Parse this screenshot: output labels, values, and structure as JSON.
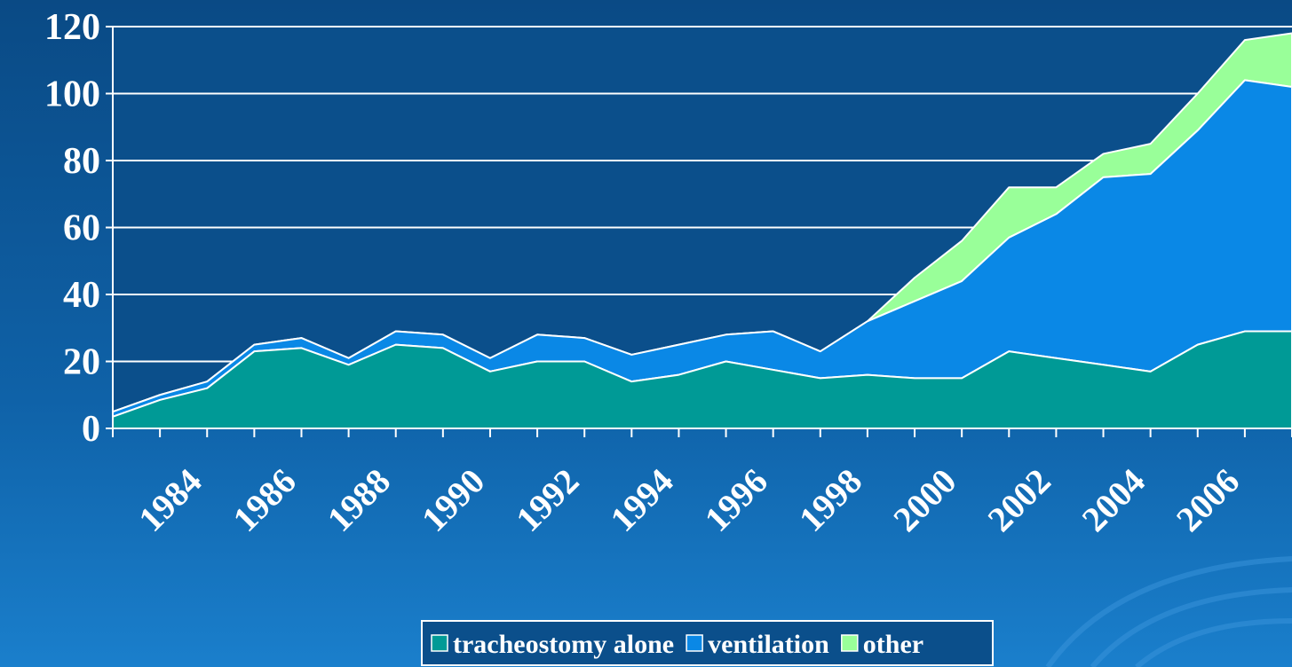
{
  "chart_data": {
    "type": "stacked_area",
    "categories": [
      null,
      null,
      "1984",
      null,
      "1986",
      null,
      "1988",
      null,
      "1990",
      null,
      "1992",
      null,
      "1994",
      null,
      "1996",
      null,
      "1998",
      null,
      "2000",
      null,
      "2002",
      null,
      "2004",
      null,
      "2006",
      null
    ],
    "series": [
      {
        "name": "tracheostomy alone",
        "color": "#009a96",
        "values": [
          3.5,
          8.5,
          12,
          23,
          24,
          19,
          25,
          24,
          17,
          20,
          20,
          14,
          16,
          20,
          17.5,
          15,
          16,
          15,
          15,
          23,
          21,
          19,
          17,
          25,
          29,
          29
        ]
      },
      {
        "name": "ventilation",
        "color": "#0a88e6",
        "values": [
          1.5,
          1.5,
          2,
          2,
          3,
          2,
          4,
          4,
          4,
          8,
          7,
          8,
          9,
          8,
          11.5,
          8,
          16,
          23,
          29,
          34,
          43,
          56,
          59,
          64,
          75,
          73
        ]
      },
      {
        "name": "other",
        "color": "#99ff99",
        "values": [
          0,
          0,
          0,
          0,
          0,
          0,
          0,
          0,
          0,
          0,
          0,
          0,
          0,
          0,
          0,
          0,
          0,
          7,
          12,
          15,
          8,
          7,
          9,
          11,
          12,
          16
        ]
      }
    ],
    "ylim": [
      0,
      120
    ],
    "yticks": [
      0,
      20,
      40,
      60,
      80,
      100,
      120
    ],
    "grid": true,
    "legend": "bottom"
  }
}
